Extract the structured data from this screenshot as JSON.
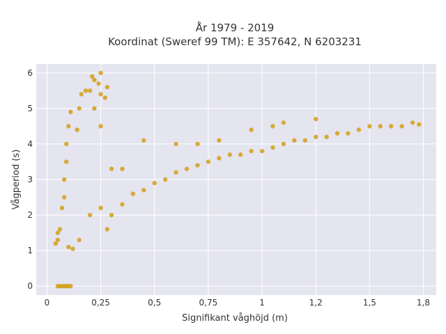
{
  "chart_data": {
    "type": "scatter",
    "title_line1": "År 1979 - 2019",
    "title_line2": "Koordinat (Sweref 99 TM): E 357642, N 6203231",
    "xlabel": "Signifikant våghöjd (m)",
    "ylabel": "Vågperiod (s)",
    "xlim": [
      -0.05,
      1.81
    ],
    "ylim": [
      -0.25,
      6.25
    ],
    "x_ticks": [
      0,
      0.25,
      0.5,
      0.75,
      1,
      1.25,
      1.5,
      1.75
    ],
    "x_tick_labels": [
      "0",
      "0,25",
      "0,5",
      "0,75",
      "1",
      "1,2",
      "1,5",
      "1,8"
    ],
    "y_ticks": [
      0,
      1,
      2,
      3,
      4,
      5,
      6
    ],
    "y_tick_labels": [
      "0",
      "1",
      "2",
      "3",
      "4",
      "5",
      "6"
    ],
    "marker_color": "#d4a017",
    "plot_background": "#e5e5f0",
    "grid": true,
    "series": [
      {
        "points": [
          [
            0.05,
            0
          ],
          [
            0.06,
            0
          ],
          [
            0.07,
            0
          ],
          [
            0.08,
            0
          ],
          [
            0.09,
            0
          ],
          [
            0.1,
            0
          ],
          [
            0.11,
            0
          ],
          [
            0.04,
            1.2
          ],
          [
            0.05,
            1.3
          ],
          [
            0.05,
            1.5
          ],
          [
            0.06,
            1.6
          ],
          [
            0.07,
            2.2
          ],
          [
            0.08,
            2.5
          ],
          [
            0.08,
            3.0
          ],
          [
            0.09,
            3.5
          ],
          [
            0.09,
            4.0
          ],
          [
            0.1,
            4.5
          ],
          [
            0.11,
            4.9
          ],
          [
            0.1,
            1.1
          ],
          [
            0.12,
            1.05
          ],
          [
            0.15,
            1.3
          ],
          [
            0.14,
            4.4
          ],
          [
            0.15,
            5.0
          ],
          [
            0.16,
            5.4
          ],
          [
            0.18,
            5.5
          ],
          [
            0.2,
            5.5
          ],
          [
            0.21,
            5.9
          ],
          [
            0.22,
            5.8
          ],
          [
            0.24,
            5.7
          ],
          [
            0.25,
            6.0
          ],
          [
            0.25,
            5.4
          ],
          [
            0.27,
            5.3
          ],
          [
            0.28,
            5.6
          ],
          [
            0.22,
            5.0
          ],
          [
            0.25,
            4.5
          ],
          [
            0.2,
            2.0
          ],
          [
            0.25,
            2.2
          ],
          [
            0.3,
            2.0
          ],
          [
            0.35,
            2.3
          ],
          [
            0.4,
            2.6
          ],
          [
            0.45,
            2.7
          ],
          [
            0.5,
            2.9
          ],
          [
            0.55,
            3.0
          ],
          [
            0.6,
            3.2
          ],
          [
            0.65,
            3.3
          ],
          [
            0.7,
            3.4
          ],
          [
            0.75,
            3.5
          ],
          [
            0.8,
            3.6
          ],
          [
            0.85,
            3.7
          ],
          [
            0.9,
            3.7
          ],
          [
            0.95,
            3.8
          ],
          [
            1.0,
            3.8
          ],
          [
            1.05,
            3.9
          ],
          [
            1.1,
            4.0
          ],
          [
            1.15,
            4.1
          ],
          [
            1.2,
            4.1
          ],
          [
            1.25,
            4.2
          ],
          [
            1.3,
            4.2
          ],
          [
            1.35,
            4.3
          ],
          [
            1.4,
            4.3
          ],
          [
            1.45,
            4.4
          ],
          [
            1.5,
            4.5
          ],
          [
            1.55,
            4.5
          ],
          [
            1.6,
            4.5
          ],
          [
            1.65,
            4.5
          ],
          [
            1.7,
            4.6
          ],
          [
            1.73,
            4.55
          ],
          [
            0.6,
            4.0
          ],
          [
            0.7,
            4.0
          ],
          [
            0.8,
            4.1
          ],
          [
            0.95,
            4.4
          ],
          [
            1.05,
            4.5
          ],
          [
            1.1,
            4.6
          ],
          [
            1.25,
            4.7
          ],
          [
            0.45,
            4.1
          ],
          [
            0.3,
            3.3
          ],
          [
            0.35,
            3.3
          ],
          [
            0.28,
            1.6
          ]
        ]
      }
    ]
  }
}
